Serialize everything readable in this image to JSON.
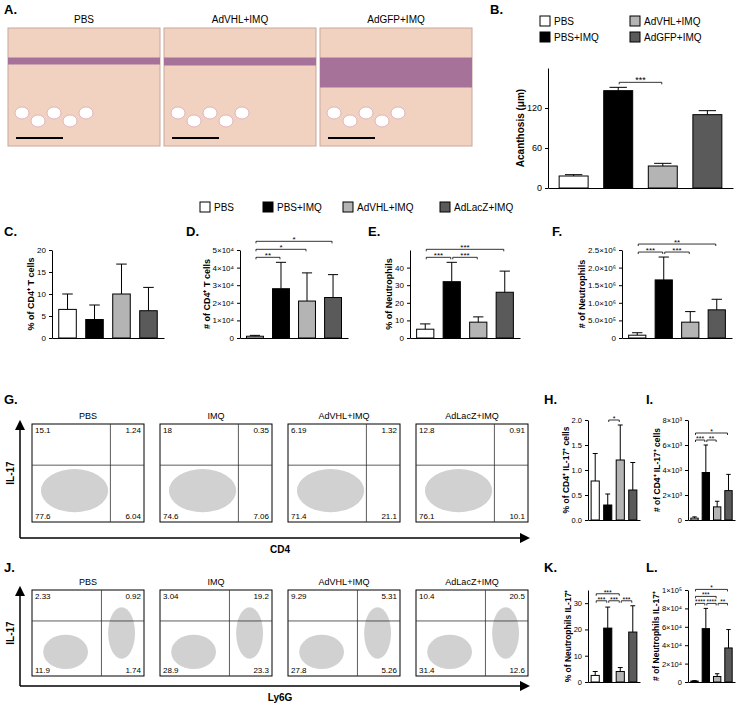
{
  "legends": [
    {
      "labels": [
        "PBS",
        "PBS+IMQ",
        "AdVHL+IMQ",
        "AdGFP+IMQ"
      ],
      "colors": [
        "#ffffff",
        "#000000",
        "#b4b4b4",
        "#5a5a5a"
      ]
    },
    {
      "labels": [
        "PBS",
        "PBS+IMQ",
        "AdVHL+IMQ",
        "AdLacZ+IMQ"
      ],
      "colors": [
        "#ffffff",
        "#000000",
        "#b4b4b4",
        "#5a5a5a"
      ]
    }
  ],
  "chart_data": [
    {
      "panel": "A.",
      "type": "image",
      "titles": [
        "PBS",
        "AdVHL+IMQ",
        "AdGFP+IMQ"
      ]
    },
    {
      "panel": "B.",
      "type": "bar",
      "ylabel": "Acanthosis (μm)",
      "categories": [
        null,
        null,
        null,
        null
      ],
      "values": [
        18,
        146,
        33,
        110
      ],
      "errors": [
        2,
        5,
        4,
        6
      ],
      "colors": [
        "#ffffff",
        "#000000",
        "#b4b4b4",
        "#5a5a5a"
      ],
      "ylim": [
        0,
        180
      ],
      "yticks": [
        0,
        60,
        120
      ],
      "tick_labels": "y",
      "significance": [
        {
          "from": 1,
          "to": 2,
          "label": "***"
        }
      ]
    },
    {
      "panel": "C.",
      "type": "bar",
      "ylabel": "% of CD4⁺ T cells",
      "categories": [
        null,
        null,
        null,
        null
      ],
      "values": [
        6.5,
        4.2,
        10,
        6.2
      ],
      "errors": [
        3.5,
        3.3,
        6.8,
        5.3
      ],
      "colors": [
        "#ffffff",
        "#000000",
        "#b4b4b4",
        "#5a5a5a"
      ],
      "ylim": [
        0,
        20
      ],
      "yticks": [
        0,
        5,
        10,
        15,
        20
      ],
      "tick_labels": "y"
    },
    {
      "panel": "D.",
      "type": "bar",
      "ylabel": "# of CD4⁺ T cells",
      "categories": [
        null,
        null,
        null,
        null
      ],
      "values": [
        1000,
        28000,
        21000,
        23000
      ],
      "errors": [
        500,
        15000,
        16000,
        13000
      ],
      "colors": [
        "#ffffff",
        "#000000",
        "#b4b4b4",
        "#5a5a5a"
      ],
      "ylim": [
        0,
        50000
      ],
      "yticks": [
        0,
        {
          "value": 10000,
          "label": "1×10⁴"
        },
        {
          "value": 20000,
          "label": "2×10⁴"
        },
        {
          "value": 30000,
          "label": "3×10⁴"
        },
        {
          "value": 40000,
          "label": "4×10⁴"
        },
        {
          "value": 50000,
          "label": "5×10⁴"
        }
      ],
      "tick_labels": "y",
      "significance": [
        {
          "from": 0,
          "to": 1,
          "label": "**"
        },
        {
          "from": 0,
          "to": 2,
          "label": "*"
        },
        {
          "from": 0,
          "to": 3,
          "label": "*"
        }
      ]
    },
    {
      "panel": "E.",
      "type": "bar",
      "ylabel": "% of Neutrophils",
      "categories": [
        null,
        null,
        null,
        null
      ],
      "values": [
        5,
        32,
        9,
        26
      ],
      "errors": [
        3,
        11,
        3,
        12
      ],
      "colors": [
        "#ffffff",
        "#000000",
        "#b4b4b4",
        "#5a5a5a"
      ],
      "ylim": [
        0,
        50
      ],
      "yticks": [
        0,
        10,
        20,
        30,
        40
      ],
      "tick_labels": "y",
      "significance": [
        {
          "from": 0,
          "to": 1,
          "label": "***"
        },
        {
          "from": 1,
          "to": 2,
          "label": "***"
        },
        {
          "from": 0,
          "to": 3,
          "label": "***"
        }
      ]
    },
    {
      "panel": "F.",
      "type": "bar",
      "ylabel": "# of Neutrophils",
      "categories": [
        null,
        null,
        null,
        null
      ],
      "values": [
        80000,
        1650000,
        450000,
        800000
      ],
      "errors": [
        70000,
        650000,
        300000,
        300000
      ],
      "colors": [
        "#ffffff",
        "#000000",
        "#b4b4b4",
        "#5a5a5a"
      ],
      "ylim": [
        0,
        2500000
      ],
      "yticks": [
        0,
        {
          "value": 500000,
          "label": "5.0×10⁵"
        },
        {
          "value": 1000000,
          "label": "1.0×10⁶"
        },
        {
          "value": 1500000,
          "label": "1.5×10⁶"
        },
        {
          "value": 2000000,
          "label": "2.0×10⁶"
        },
        {
          "value": 2500000,
          "label": "2.5×10⁶"
        }
      ],
      "tick_labels": "y",
      "significance": [
        {
          "from": 0,
          "to": 1,
          "label": "***"
        },
        {
          "from": 1,
          "to": 2,
          "label": "***"
        },
        {
          "from": 0,
          "to": 3,
          "label": "**"
        }
      ]
    },
    {
      "panel": "G.",
      "type": "flow_quadrant",
      "xlabel": "CD4",
      "ylabel": "IL-17",
      "plots": [
        {
          "title": "PBS",
          "quadrants": [
            15.1,
            1.24,
            77.6,
            6.04
          ]
        },
        {
          "title": "IMQ",
          "quadrants": [
            18,
            0.35,
            74.6,
            7.06
          ]
        },
        {
          "title": "AdVHL+IMQ",
          "quadrants": [
            6.19,
            1.32,
            71.4,
            21.1
          ]
        },
        {
          "title": "AdLacZ+IMQ",
          "quadrants": [
            12.8,
            0.91,
            76.1,
            10.1
          ]
        }
      ]
    },
    {
      "panel": "H.",
      "type": "bar",
      "ylabel": "% of CD4⁺ IL-17⁺ cells",
      "categories": [
        null,
        null,
        null,
        null
      ],
      "values": [
        0.78,
        0.3,
        1.2,
        0.6
      ],
      "errors": [
        0.55,
        0.22,
        0.7,
        0.55
      ],
      "colors": [
        "#ffffff",
        "#000000",
        "#b4b4b4",
        "#5a5a5a"
      ],
      "ylim": [
        0,
        2
      ],
      "yticks": [
        {
          "value": 0,
          "label": "0.0"
        },
        0.5,
        {
          "value": 1,
          "label": "1.0"
        },
        1.5,
        {
          "value": 2,
          "label": "2.0"
        }
      ],
      "tick_labels": "y",
      "significance": [
        {
          "from": 1,
          "to": 2,
          "label": "*"
        }
      ]
    },
    {
      "panel": "I.",
      "type": "bar",
      "ylabel": "# of CD4⁺ IL-17⁺ cells",
      "categories": [
        null,
        null,
        null,
        null
      ],
      "values": [
        150,
        3800,
        1050,
        2350
      ],
      "errors": [
        100,
        2200,
        450,
        1300
      ],
      "colors": [
        "#ffffff",
        "#000000",
        "#b4b4b4",
        "#5a5a5a"
      ],
      "ylim": [
        0,
        8000
      ],
      "yticks": [
        0,
        {
          "value": 2000,
          "label": "2×10³"
        },
        {
          "value": 4000,
          "label": "4×10³"
        },
        {
          "value": 6000,
          "label": "6×10³"
        },
        {
          "value": 8000,
          "label": "8×10³"
        }
      ],
      "tick_labels": "y",
      "significance": [
        {
          "from": 0,
          "to": 1,
          "label": "***"
        },
        {
          "from": 1,
          "to": 2,
          "label": "**"
        },
        {
          "from": 0,
          "to": 3,
          "label": "*"
        }
      ]
    },
    {
      "panel": "J.",
      "type": "flow_quadrant",
      "xlabel": "Ly6G",
      "ylabel": "IL-17",
      "plots": [
        {
          "title": "PBS",
          "quadrants": [
            2.33,
            0.92,
            11.9,
            1.74
          ]
        },
        {
          "title": "IMQ",
          "quadrants": [
            3.04,
            19.2,
            28.9,
            23.3
          ]
        },
        {
          "title": "AdVHL+IMQ",
          "quadrants": [
            9.29,
            5.31,
            27.8,
            5.26
          ]
        },
        {
          "title": "AdLacZ+IMQ",
          "quadrants": [
            10.4,
            20.5,
            31.4,
            12.6
          ]
        }
      ]
    },
    {
      "panel": "K.",
      "type": "bar",
      "ylabel": "% of Neutrophils IL-17⁺",
      "categories": [
        null,
        null,
        null,
        null
      ],
      "values": [
        2.5,
        20.5,
        4,
        19
      ],
      "errors": [
        1.5,
        8,
        1.5,
        10
      ],
      "colors": [
        "#ffffff",
        "#000000",
        "#b4b4b4",
        "#5a5a5a"
      ],
      "ylim": [
        0,
        35
      ],
      "yticks": [
        0,
        10,
        20,
        30
      ],
      "tick_labels": "y",
      "significance": [
        {
          "from": 0,
          "to": 1,
          "label": "***"
        },
        {
          "from": 1,
          "to": 2,
          "label": "***"
        },
        {
          "from": 2,
          "to": 3,
          "label": "***"
        },
        {
          "from": 0,
          "to": 2,
          "label": "***"
        }
      ]
    },
    {
      "panel": "L.",
      "type": "bar",
      "ylabel": "# of Neutrophils IL-17⁺",
      "categories": [
        null,
        null,
        null,
        null
      ],
      "values": [
        1000,
        58000,
        6000,
        37000
      ],
      "errors": [
        500,
        22000,
        3000,
        20000
      ],
      "colors": [
        "#ffffff",
        "#000000",
        "#b4b4b4",
        "#5a5a5a"
      ],
      "ylim": [
        0,
        100000
      ],
      "yticks": [
        0,
        {
          "value": 20000,
          "label": "2×10⁴"
        },
        {
          "value": 40000,
          "label": "4×10⁴"
        },
        {
          "value": 60000,
          "label": "6×10⁴"
        },
        {
          "value": 80000,
          "label": "8×10⁴"
        },
        {
          "value": 100000,
          "label": "1×10⁵"
        }
      ],
      "tick_labels": "y",
      "significance": [
        {
          "from": 0,
          "to": 1,
          "label": "****"
        },
        {
          "from": 1,
          "to": 2,
          "label": "****"
        },
        {
          "from": 2,
          "to": 3,
          "label": "**"
        },
        {
          "from": 0,
          "to": 2,
          "label": "***"
        },
        {
          "from": 0,
          "to": 3,
          "label": "*"
        }
      ]
    }
  ]
}
